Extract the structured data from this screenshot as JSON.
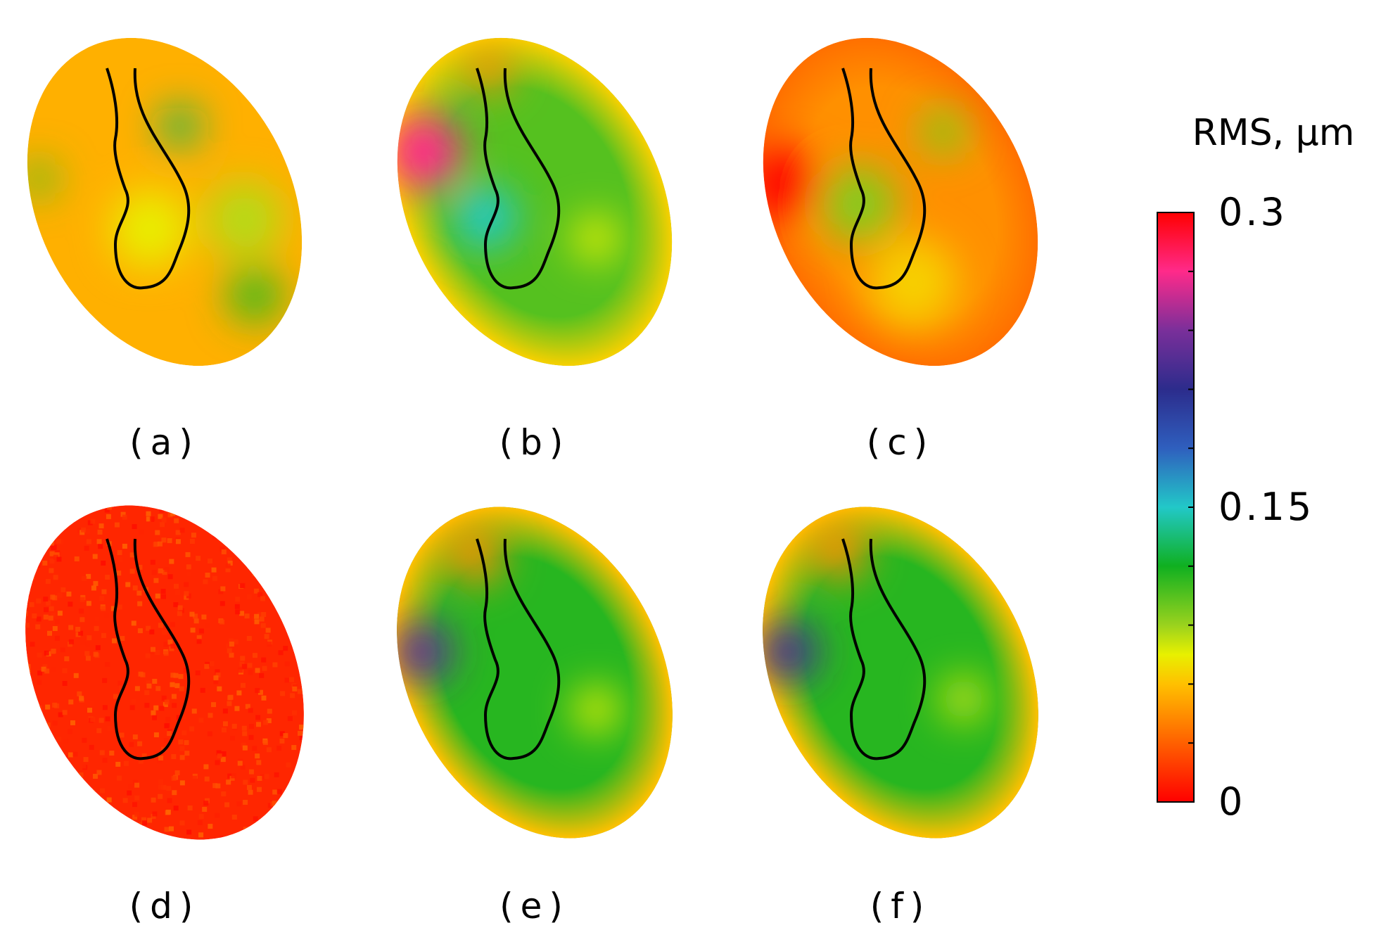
{
  "chart_data": {
    "type": "heatmap",
    "colorbar": {
      "title": "RMS, µm",
      "min": 0,
      "max": 0.3,
      "tick_labels": [
        "0.3",
        "0.15",
        "0"
      ],
      "tick_values": [
        0.3,
        0.15,
        0
      ],
      "colormap": [
        {
          "v": 0.0,
          "color": "#ff0000"
        },
        {
          "v": 0.03,
          "color": "#ff6000"
        },
        {
          "v": 0.06,
          "color": "#ffc000"
        },
        {
          "v": 0.075,
          "color": "#e8f000"
        },
        {
          "v": 0.09,
          "color": "#9ad21e"
        },
        {
          "v": 0.12,
          "color": "#10b020"
        },
        {
          "v": 0.15,
          "color": "#22c8c8"
        },
        {
          "v": 0.18,
          "color": "#2f5fbe"
        },
        {
          "v": 0.21,
          "color": "#2c2c8c"
        },
        {
          "v": 0.24,
          "color": "#7a2f9a"
        },
        {
          "v": 0.27,
          "color": "#ff2a8a"
        },
        {
          "v": 0.3,
          "color": "#ff0000"
        }
      ]
    },
    "panels": [
      {
        "label": "(a)",
        "background_rms": 0.055,
        "features": [
          {
            "kind": "blob",
            "u": 0.38,
            "v": -0.35,
            "r": 0.16,
            "rms": 0.13
          },
          {
            "kind": "blob",
            "u": -0.8,
            "v": -0.45,
            "r": 0.14,
            "rms": 0.105
          },
          {
            "kind": "blob",
            "u": 0.3,
            "v": 0.72,
            "r": 0.22,
            "rms": 0.11
          },
          {
            "kind": "blob",
            "u": -0.2,
            "v": 0.1,
            "r": 0.3,
            "rms": 0.075
          },
          {
            "kind": "blob",
            "u": 0.5,
            "v": 0.3,
            "r": 0.3,
            "rms": 0.085
          }
        ]
      },
      {
        "label": "(b)",
        "background_rms": 0.105,
        "edge_rms": 0.065,
        "features": [
          {
            "kind": "blob",
            "u": -0.6,
            "v": -0.55,
            "r": 0.3,
            "rms": 0.27
          },
          {
            "kind": "blob",
            "u": -0.4,
            "v": -0.05,
            "r": 0.25,
            "rms": 0.15
          },
          {
            "kind": "blob",
            "u": 0.15,
            "v": -0.8,
            "r": 0.18,
            "rms": 0.045
          },
          {
            "kind": "blob",
            "u": 0.3,
            "v": 0.35,
            "r": 0.18,
            "rms": 0.075
          }
        ]
      },
      {
        "label": "(c)",
        "background_rms": 0.045,
        "edge_rms": 0.035,
        "features": [
          {
            "kind": "blob",
            "u": -0.75,
            "v": -0.4,
            "r": 0.28,
            "rms": 0.3
          },
          {
            "kind": "blob",
            "u": -0.3,
            "v": -0.1,
            "r": 0.3,
            "rms": 0.095
          },
          {
            "kind": "blob",
            "u": 0.55,
            "v": -0.25,
            "r": 0.18,
            "rms": 0.095
          },
          {
            "kind": "blob",
            "u": -0.2,
            "v": 0.45,
            "r": 0.35,
            "rms": 0.065
          }
        ]
      },
      {
        "label": "(d)",
        "background_rms": 0.012,
        "features": []
      },
      {
        "label": "(e)",
        "background_rms": 0.115,
        "edge_rms": 0.06,
        "features": [
          {
            "kind": "blob",
            "u": -0.72,
            "v": -0.4,
            "r": 0.24,
            "rms": 0.23
          },
          {
            "kind": "blob",
            "u": 0.0,
            "v": -0.75,
            "r": 0.22,
            "rms": 0.045
          },
          {
            "kind": "blob",
            "u": 0.3,
            "v": 0.35,
            "r": 0.18,
            "rms": 0.075
          }
        ]
      },
      {
        "label": "(f)",
        "background_rms": 0.115,
        "edge_rms": 0.06,
        "features": [
          {
            "kind": "blob",
            "u": -0.72,
            "v": -0.4,
            "r": 0.24,
            "rms": 0.22
          },
          {
            "kind": "blob",
            "u": 0.0,
            "v": -0.78,
            "r": 0.22,
            "rms": 0.045
          },
          {
            "kind": "blob",
            "u": 0.35,
            "v": 0.3,
            "r": 0.18,
            "rms": 0.08
          }
        ]
      }
    ]
  }
}
